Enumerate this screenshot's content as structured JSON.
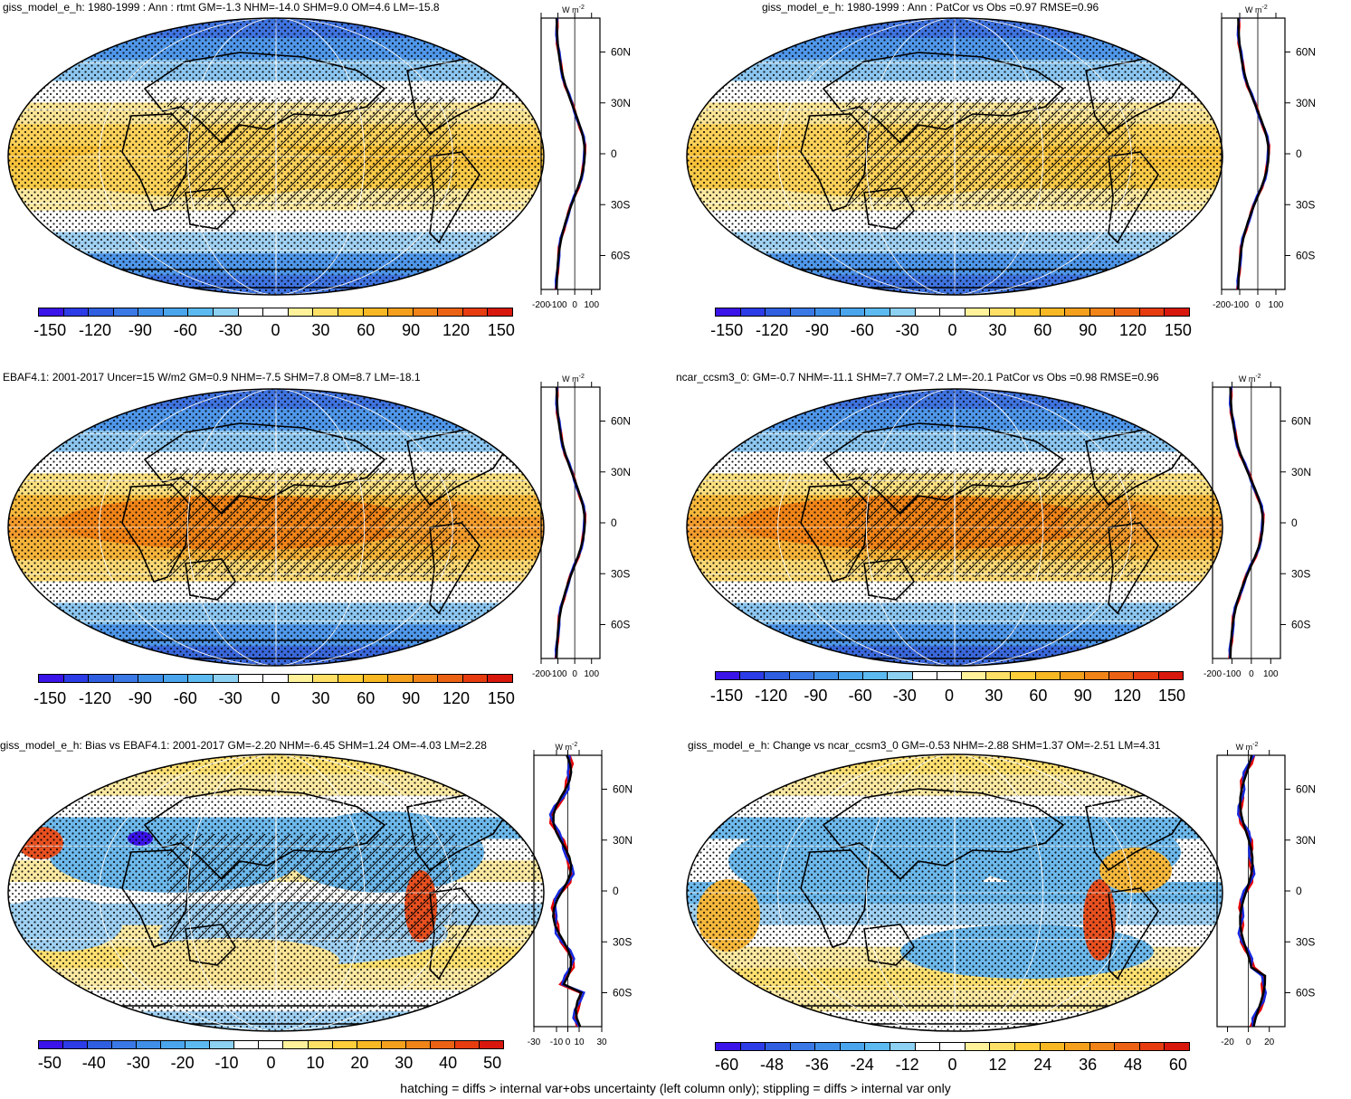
{
  "footer": "hatching = diffs > internal var+obs uncertainty (left column only); stippling = diffs > internal var only",
  "zonal_unit": "W m",
  "zonal_unit_exp": "-2",
  "lat_labels": [
    "60N",
    "30N",
    "0",
    "30S",
    "60S"
  ],
  "colors": {
    "abs_scale": [
      "#3a14e8",
      "#2c3ce6",
      "#2f5fe0",
      "#3a78e6",
      "#3f8fe8",
      "#4aa5ec",
      "#5cbaf0",
      "#8cd0f2",
      "#ffffff",
      "#ffffff",
      "#fff29a",
      "#ffe066",
      "#ffce3a",
      "#f8b824",
      "#f4a01c",
      "#f08418",
      "#ec6214",
      "#e63c10",
      "#d8180c"
    ],
    "bias_scale": [
      "#3a14e8",
      "#2c3ce6",
      "#2f5fe0",
      "#3a78e6",
      "#3f8fe8",
      "#4aa5ec",
      "#5cbaf0",
      "#8cd0f2",
      "#ffffff",
      "#ffffff",
      "#fff29a",
      "#ffe066",
      "#ffce3a",
      "#f8b824",
      "#f4a01c",
      "#f08418",
      "#ec6214",
      "#e63c10",
      "#d8180c"
    ]
  },
  "panels": [
    {
      "title": "giss_model_e_h: 1980-1999 : Ann : rtmt GM=-1.3 NHM=-14.0 SHM=9.0 OM=4.6 LM=-15.8",
      "kind": "abs",
      "cbar_labels": [
        "-150",
        "-120",
        "-90",
        "-60",
        "-30",
        "0",
        "30",
        "60",
        "90",
        "120",
        "150"
      ],
      "zonal_ticks": [
        "-200",
        "-100",
        "0",
        "100"
      ],
      "zonal_xlim": [
        -200,
        150
      ],
      "lines": [
        "red",
        "blue",
        "black"
      ]
    },
    {
      "title": "giss_model_e_h: 1980-1999 : Ann : PatCor vs Obs =0.97 RMSE=0.96",
      "kind": "abs",
      "cbar_labels": [
        "-150",
        "-120",
        "-90",
        "-60",
        "-30",
        "0",
        "30",
        "60",
        "90",
        "120",
        "150"
      ],
      "zonal_ticks": [
        "-200",
        "-100",
        "0",
        "100"
      ],
      "zonal_xlim": [
        -200,
        150
      ],
      "lines": [
        "red",
        "blue",
        "black"
      ]
    },
    {
      "title": "EBAF4.1: 2001-2017 Uncer=15 W/m2 GM=0.9 NHM=-7.5 SHM=7.8 OM=8.7 LM=-18.1",
      "kind": "abs",
      "cbar_labels": [
        "-150",
        "-120",
        "-90",
        "-60",
        "-30",
        "0",
        "30",
        "60",
        "90",
        "120",
        "150"
      ],
      "zonal_ticks": [
        "-200",
        "-100",
        "0",
        "100"
      ],
      "zonal_xlim": [
        -200,
        150
      ],
      "lines": [
        "red",
        "blue",
        "black"
      ]
    },
    {
      "title": "ncar_ccsm3_0: GM=-0.7 NHM=-11.1 SHM=7.7 OM=7.2 LM=-20.1 PatCor vs Obs =0.98 RMSE=0.96",
      "kind": "abs",
      "cbar_labels": [
        "-150",
        "-120",
        "-90",
        "-60",
        "-30",
        "0",
        "30",
        "60",
        "90",
        "120",
        "150"
      ],
      "zonal_ticks": [
        "-200",
        "-100",
        "0",
        "100"
      ],
      "zonal_xlim": [
        -200,
        150
      ],
      "lines": [
        "red",
        "blue",
        "black"
      ]
    },
    {
      "title": "giss_model_e_h: Bias vs EBAF4.1: 2001-2017 GM=-2.20 NHM=-6.45 SHM=1.24 OM=-4.03 LM=2.28",
      "kind": "bias",
      "cbar_labels": [
        "-50",
        "-40",
        "-30",
        "-20",
        "-10",
        "0",
        "10",
        "20",
        "30",
        "40",
        "50"
      ],
      "zonal_ticks": [
        "-30",
        "-10",
        "0",
        "10",
        "30"
      ],
      "zonal_xlim": [
        -30,
        30
      ],
      "lines": [
        "red",
        "blue",
        "black"
      ]
    },
    {
      "title": "giss_model_e_h: Change vs ncar_ccsm3_0 GM=-0.53 NHM=-2.88 SHM=1.37 OM=-2.51 LM=4.31",
      "kind": "change",
      "cbar_labels": [
        "-60",
        "-48",
        "-36",
        "-24",
        "-12",
        "0",
        "12",
        "24",
        "36",
        "48",
        "60"
      ],
      "zonal_ticks": [
        "-20",
        "0",
        "20"
      ],
      "zonal_xlim": [
        -30,
        35
      ],
      "lines": [
        "red",
        "blue",
        "black"
      ]
    }
  ]
}
